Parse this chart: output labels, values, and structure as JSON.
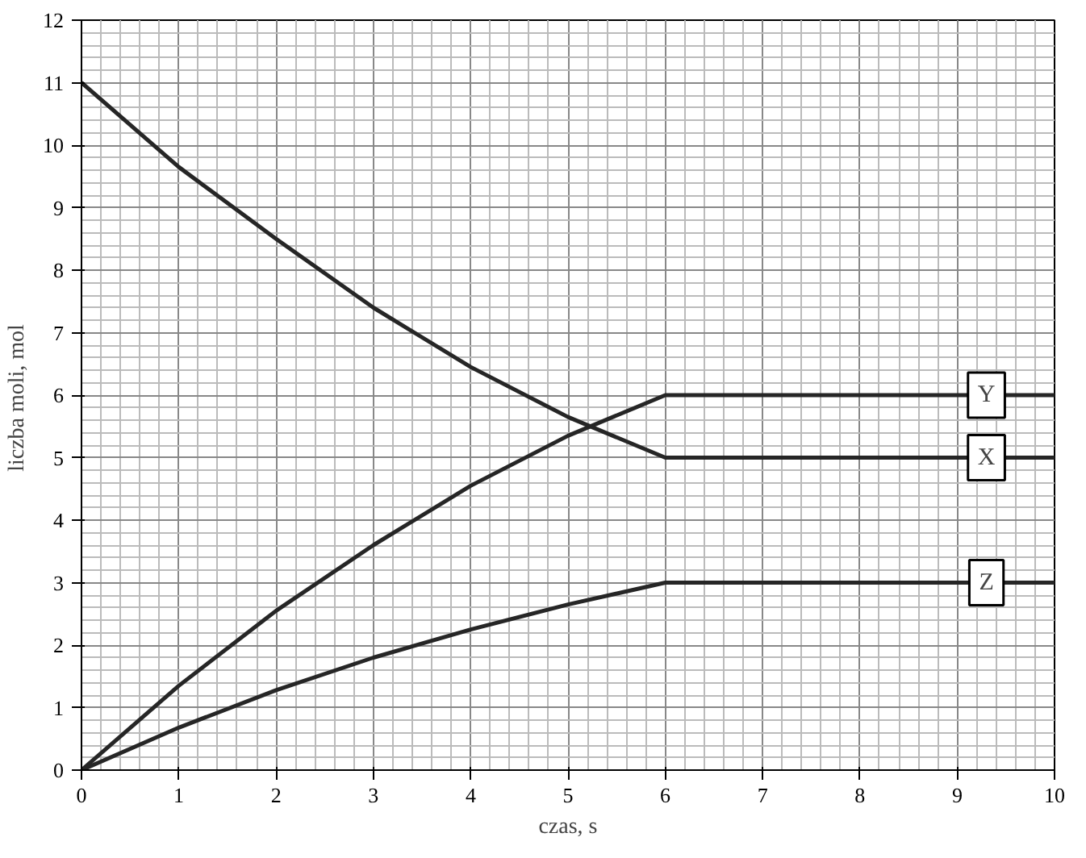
{
  "chart_data": {
    "type": "line",
    "xlabel": "czas, s",
    "ylabel": "liczba  moli, mol",
    "x": [
      0,
      1,
      2,
      3,
      4,
      5,
      6,
      10
    ],
    "series": [
      {
        "name": "Y",
        "color": "#262626",
        "values": [
          0,
          1.35,
          2.55,
          3.6,
          4.55,
          5.35,
          6,
          6
        ]
      },
      {
        "name": "X",
        "color": "#262626",
        "values": [
          11,
          9.65,
          8.5,
          7.4,
          6.45,
          5.65,
          5,
          5
        ]
      },
      {
        "name": "Z",
        "color": "#262626",
        "values": [
          0,
          0.68,
          1.28,
          1.8,
          2.25,
          2.65,
          3,
          3
        ]
      }
    ],
    "xlim": [
      0,
      10
    ],
    "ylim": [
      0,
      12
    ],
    "xticks": [
      0,
      1,
      2,
      3,
      4,
      5,
      6,
      7,
      8,
      9,
      10
    ],
    "yticks": [
      0,
      1,
      2,
      3,
      4,
      5,
      6,
      7,
      8,
      9,
      10,
      11,
      12
    ],
    "grid": true,
    "marker": "none",
    "line_style": "solid"
  }
}
